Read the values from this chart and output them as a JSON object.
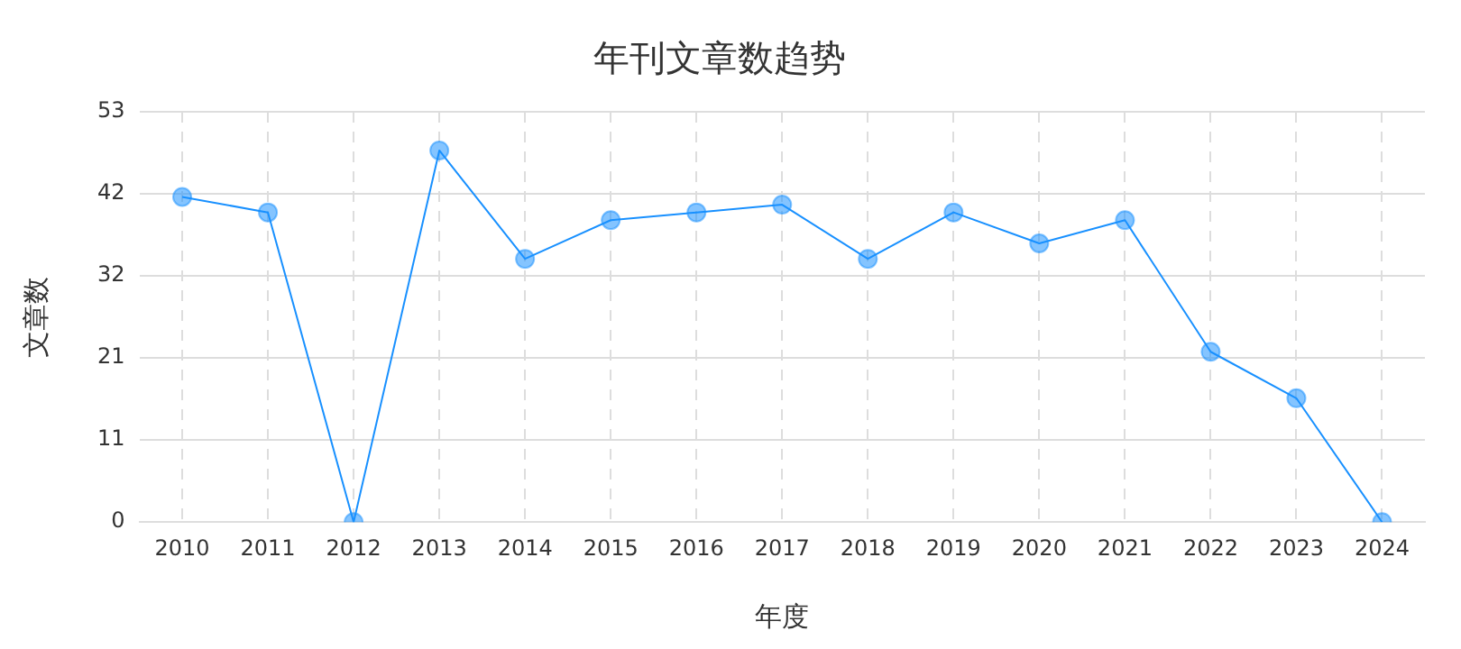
{
  "chart_data": {
    "type": "line",
    "title": "年刊文章数趋势",
    "xlabel": "年度",
    "ylabel": "文章数",
    "categories": [
      "2010",
      "2011",
      "2012",
      "2013",
      "2014",
      "2015",
      "2016",
      "2017",
      "2018",
      "2019",
      "2020",
      "2021",
      "2022",
      "2023",
      "2024"
    ],
    "series": [
      {
        "color": "#1890ff",
        "values": [
          42,
          40,
          0,
          48,
          34,
          39,
          40,
          41,
          34,
          40,
          36,
          39,
          22,
          16,
          0
        ]
      }
    ],
    "ylim": [
      0,
      53
    ],
    "yticks": [
      0,
      {
        "value": 10.6,
        "label": "11"
      },
      {
        "value": 21.2,
        "label": "21"
      },
      {
        "value": 31.8,
        "label": "32"
      },
      {
        "value": 42.4,
        "label": "42"
      },
      53
    ],
    "grid": true,
    "legend": false,
    "marker": "circle",
    "line_style": "solid"
  }
}
